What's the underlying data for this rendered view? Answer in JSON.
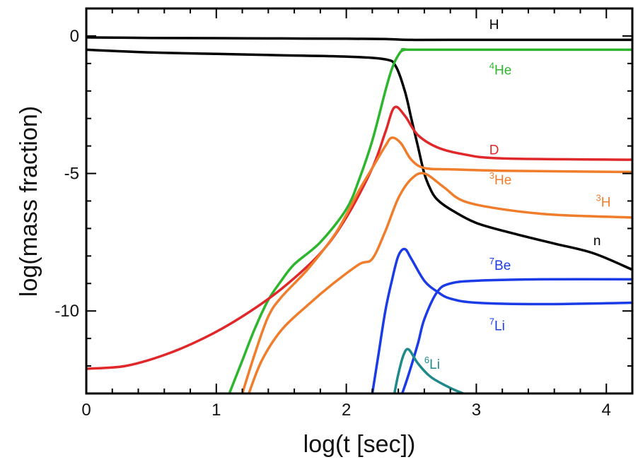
{
  "chart_data": {
    "type": "line",
    "xlabel": "log(t [sec])",
    "ylabel": "log(mass fraction)",
    "xlim": [
      0,
      4.2
    ],
    "ylim": [
      -13,
      1
    ],
    "xticks": [
      {
        "value": 0,
        "label": "0"
      },
      {
        "value": 1,
        "label": "1"
      },
      {
        "value": 2,
        "label": "2"
      },
      {
        "value": 3,
        "label": "3"
      },
      {
        "value": 4,
        "label": "4"
      }
    ],
    "yticks": [
      {
        "value": 0,
        "label": "0"
      },
      {
        "value": -5,
        "label": "-5"
      },
      {
        "value": -10,
        "label": "-10"
      }
    ],
    "grid": false,
    "legend": "inline labels",
    "series": [
      {
        "name": "H",
        "sup": "",
        "sub": "H",
        "color": "#000000",
        "label_at": [
          3.1,
          0.25
        ],
        "points": [
          [
            0,
            -0.05
          ],
          [
            0.5,
            -0.07
          ],
          [
            1,
            -0.08
          ],
          [
            1.5,
            -0.09
          ],
          [
            2,
            -0.1
          ],
          [
            2.3,
            -0.11
          ],
          [
            2.5,
            -0.14
          ],
          [
            3,
            -0.14
          ],
          [
            4.2,
            -0.14
          ]
        ]
      },
      {
        "name": "n",
        "sup": "",
        "sub": "n",
        "color": "#000000",
        "label_at": [
          3.9,
          -7.6
        ],
        "points": [
          [
            0,
            -0.5
          ],
          [
            0.5,
            -0.6
          ],
          [
            1,
            -0.65
          ],
          [
            1.5,
            -0.7
          ],
          [
            2,
            -0.75
          ],
          [
            2.3,
            -0.85
          ],
          [
            2.38,
            -1.1
          ],
          [
            2.45,
            -2
          ],
          [
            2.5,
            -3
          ],
          [
            2.55,
            -4
          ],
          [
            2.6,
            -5
          ],
          [
            2.65,
            -5.6
          ],
          [
            2.7,
            -5.95
          ],
          [
            2.8,
            -6.3
          ],
          [
            3,
            -6.8
          ],
          [
            3.3,
            -7.2
          ],
          [
            3.6,
            -7.55
          ],
          [
            3.9,
            -7.9
          ],
          [
            4.2,
            -8.5
          ]
        ]
      },
      {
        "name": "4He",
        "sup": "4",
        "sub": "He",
        "color": "#2db52d",
        "label_at": [
          3.1,
          -1.4
        ],
        "points": [
          [
            1.1,
            -13
          ],
          [
            1.2,
            -11.8
          ],
          [
            1.3,
            -10.6
          ],
          [
            1.4,
            -9.6
          ],
          [
            1.5,
            -8.9
          ],
          [
            1.6,
            -8.3
          ],
          [
            1.8,
            -7.5
          ],
          [
            2,
            -6.3
          ],
          [
            2.1,
            -5.2
          ],
          [
            2.2,
            -3.8
          ],
          [
            2.3,
            -2
          ],
          [
            2.35,
            -1.2
          ],
          [
            2.4,
            -0.7
          ],
          [
            2.45,
            -0.5
          ],
          [
            2.6,
            -0.5
          ],
          [
            4.2,
            -0.5
          ]
        ]
      },
      {
        "name": "D",
        "sup": "",
        "sub": "D",
        "color": "#e0282b",
        "label_at": [
          3.1,
          -4.3
        ],
        "points": [
          [
            0,
            -12.1
          ],
          [
            0.3,
            -12
          ],
          [
            0.6,
            -11.6
          ],
          [
            0.9,
            -11
          ],
          [
            1.2,
            -10.2
          ],
          [
            1.5,
            -9.2
          ],
          [
            1.8,
            -7.9
          ],
          [
            2,
            -6.6
          ],
          [
            2.2,
            -4.8
          ],
          [
            2.3,
            -3.5
          ],
          [
            2.37,
            -2.6
          ],
          [
            2.45,
            -2.9
          ],
          [
            2.55,
            -3.6
          ],
          [
            2.7,
            -4.05
          ],
          [
            2.9,
            -4.3
          ],
          [
            3.2,
            -4.45
          ],
          [
            4.2,
            -4.5
          ]
        ]
      },
      {
        "name": "3He",
        "sup": "3",
        "sub": "He",
        "color": "#f07d2b",
        "label_at": [
          3.1,
          -5.4
        ],
        "points": [
          [
            1.2,
            -13
          ],
          [
            1.3,
            -11.5
          ],
          [
            1.4,
            -10.2
          ],
          [
            1.5,
            -9.5
          ],
          [
            1.7,
            -8.5
          ],
          [
            1.9,
            -7.3
          ],
          [
            2,
            -6.5
          ],
          [
            2.1,
            -5.6
          ],
          [
            2.2,
            -4.8
          ],
          [
            2.3,
            -4
          ],
          [
            2.35,
            -3.7
          ],
          [
            2.42,
            -3.9
          ],
          [
            2.5,
            -4.5
          ],
          [
            2.6,
            -4.8
          ],
          [
            2.8,
            -4.85
          ],
          [
            3.2,
            -4.9
          ],
          [
            4.2,
            -4.95
          ]
        ]
      },
      {
        "name": "3H",
        "sup": "3",
        "sub": "H",
        "color": "#f07d2b",
        "label_at": [
          3.92,
          -6.2
        ],
        "points": [
          [
            1.25,
            -13
          ],
          [
            1.35,
            -11.8
          ],
          [
            1.5,
            -10.7
          ],
          [
            1.7,
            -9.8
          ],
          [
            1.9,
            -9
          ],
          [
            2.1,
            -8.3
          ],
          [
            2.2,
            -8.1
          ],
          [
            2.3,
            -7.1
          ],
          [
            2.4,
            -5.9
          ],
          [
            2.5,
            -5.2
          ],
          [
            2.6,
            -5
          ],
          [
            2.75,
            -5.5
          ],
          [
            2.9,
            -6
          ],
          [
            3.2,
            -6.3
          ],
          [
            3.6,
            -6.5
          ],
          [
            4.2,
            -6.6
          ]
        ]
      },
      {
        "name": "7Be",
        "sup": "7",
        "sub": "Be",
        "color": "#1b3be6",
        "label_at": [
          3.1,
          -8.5
        ],
        "points": [
          [
            2.2,
            -13
          ],
          [
            2.25,
            -11.5
          ],
          [
            2.3,
            -10
          ],
          [
            2.35,
            -8.9
          ],
          [
            2.4,
            -8
          ],
          [
            2.45,
            -7.75
          ],
          [
            2.5,
            -8.1
          ],
          [
            2.6,
            -8.9
          ],
          [
            2.7,
            -9.3
          ],
          [
            2.8,
            -9.55
          ],
          [
            3,
            -9.7
          ],
          [
            3.5,
            -9.75
          ],
          [
            4.2,
            -9.7
          ]
        ]
      },
      {
        "name": "7Li",
        "sup": "7",
        "sub": "Li",
        "color": "#1b3be6",
        "label_at": [
          3.1,
          -10.7
        ],
        "points": [
          [
            2.43,
            -13
          ],
          [
            2.48,
            -12.3
          ],
          [
            2.55,
            -11.2
          ],
          [
            2.6,
            -10.3
          ],
          [
            2.7,
            -9.3
          ],
          [
            2.8,
            -9
          ],
          [
            3,
            -8.9
          ],
          [
            3.5,
            -8.85
          ],
          [
            4.2,
            -8.85
          ]
        ]
      },
      {
        "name": "6Li",
        "sup": "6",
        "sub": "Li",
        "color": "#208a8a",
        "label_at": [
          2.6,
          -12.1
        ],
        "points": [
          [
            2.37,
            -13
          ],
          [
            2.4,
            -12.3
          ],
          [
            2.44,
            -11.6
          ],
          [
            2.48,
            -11.4
          ],
          [
            2.55,
            -11.9
          ],
          [
            2.65,
            -12.4
          ],
          [
            2.8,
            -12.8
          ],
          [
            2.9,
            -13
          ]
        ]
      }
    ]
  }
}
